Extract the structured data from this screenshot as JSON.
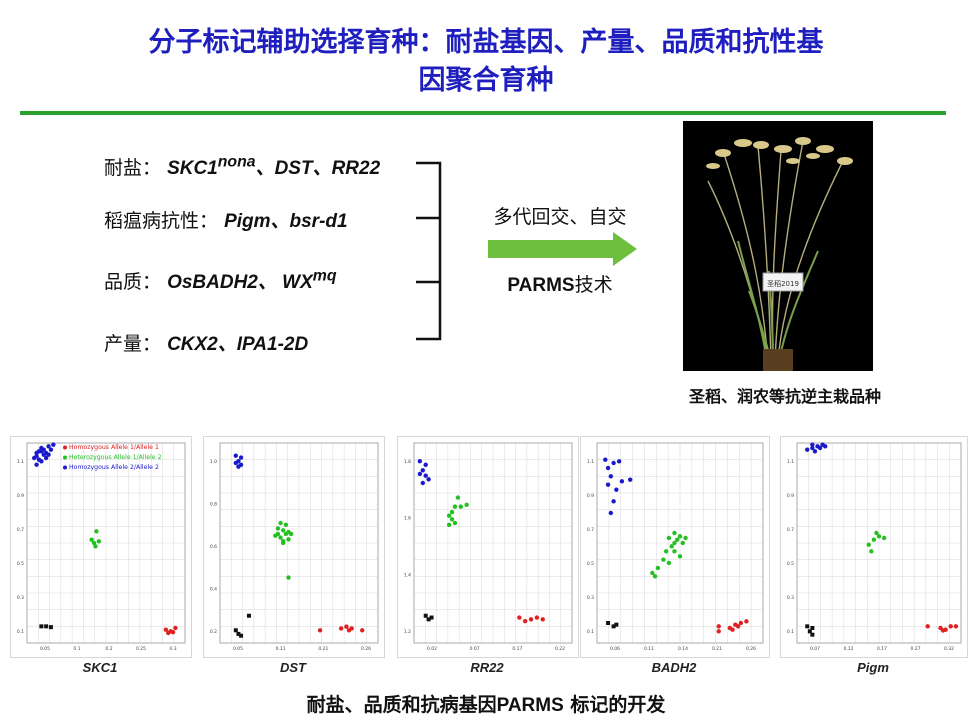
{
  "title_line1": "分子标记辅助选择育种：耐盐基因、产量、品质和抗性基",
  "title_line2": "因聚合育种",
  "traits": [
    {
      "label": "耐盐：",
      "genes_html": "SKC1<sup>nona</sup>、DST、RR22"
    },
    {
      "label": "稻瘟病抗性：",
      "genes_html": "Pigm、bsr-d1"
    },
    {
      "label": "品质：",
      "genes_html": "OsBADH2、 WX<sup>mq</sup>"
    },
    {
      "label": "产量：",
      "genes_html": "CKX2、IPA1-2D"
    }
  ],
  "process": {
    "line1": "多代回交、自交",
    "line2_en": "PARMS",
    "line2_zh": "技术"
  },
  "photo_tag": "圣稻2019",
  "photo_caption": "圣稻、润农等抗逆主栽品种",
  "legend": [
    {
      "label": "Homozygous Allele 1/Allele 1",
      "color": "#e02020"
    },
    {
      "label": "Heterozygous Allele 1/Allele 2",
      "color": "#22c022"
    },
    {
      "label": "Homozygous Allele 2/Allele 2",
      "color": "#1a1acc"
    }
  ],
  "colors": {
    "title": "#1f1fbf",
    "rule": "#2ca02c",
    "arrow": "#6fbf3f",
    "allele1": "#e02020",
    "het": "#22c022",
    "allele2": "#1a1acc",
    "ntc": "#111111"
  },
  "bottom_caption_zh1": "耐盐、品质和抗病基因",
  "bottom_caption_en": "PARMS",
  "bottom_caption_zh2": " 标记的开发",
  "chart_data": [
    {
      "type": "scatter",
      "title": "SKC1",
      "xlim": [
        0.0,
        0.33
      ],
      "ylim": [
        0.0,
        1.2
      ],
      "xticks": [
        "0.05",
        "0.1",
        "0.2",
        "0.25",
        "0.3"
      ],
      "yticks": [
        "1.1",
        "0.9",
        "0.7",
        "0.5",
        "0.3",
        "0.1"
      ],
      "series": [
        {
          "name": "Homozygous Allele 2/Allele 2",
          "points": [
            [
              0.02,
              1.12
            ],
            [
              0.03,
              1.15
            ],
            [
              0.025,
              1.1
            ],
            [
              0.04,
              1.14
            ],
            [
              0.03,
              1.17
            ],
            [
              0.05,
              1.16
            ],
            [
              0.02,
              1.07
            ],
            [
              0.035,
              1.13
            ],
            [
              0.045,
              1.18
            ],
            [
              0.015,
              1.11
            ],
            [
              0.03,
              1.09
            ],
            [
              0.055,
              1.19
            ],
            [
              0.025,
              1.15
            ],
            [
              0.04,
              1.11
            ],
            [
              0.02,
              1.14
            ],
            [
              0.035,
              1.16
            ],
            [
              0.045,
              1.13
            ]
          ]
        },
        {
          "name": "Heterozygous Allele 1/Allele 2",
          "points": [
            [
              0.145,
              0.67
            ],
            [
              0.14,
              0.6
            ],
            [
              0.15,
              0.61
            ],
            [
              0.143,
              0.58
            ],
            [
              0.135,
              0.62
            ]
          ]
        },
        {
          "name": "Homozygous Allele 1/Allele 1",
          "points": [
            [
              0.29,
              0.08
            ],
            [
              0.3,
              0.07
            ],
            [
              0.31,
              0.09
            ],
            [
              0.295,
              0.06
            ],
            [
              0.305,
              0.065
            ]
          ]
        },
        {
          "name": "NTC",
          "points": [
            [
              0.03,
              0.1
            ],
            [
              0.04,
              0.1
            ],
            [
              0.05,
              0.095
            ]
          ]
        }
      ]
    },
    {
      "type": "scatter",
      "title": "DST",
      "xlim": [
        0.0,
        0.3
      ],
      "ylim": [
        0.0,
        1.1
      ],
      "xticks": [
        "0.05",
        "0.11",
        "0.21",
        "0.26"
      ],
      "yticks": [
        "1.0",
        "0.8",
        "0.6",
        "0.4",
        "0.2"
      ],
      "series": [
        {
          "name": "Homozygous Allele 2/Allele 2",
          "points": [
            [
              0.03,
              1.03
            ],
            [
              0.035,
              1.0
            ],
            [
              0.04,
              0.98
            ],
            [
              0.03,
              0.99
            ],
            [
              0.04,
              1.02
            ],
            [
              0.035,
              0.97
            ]
          ]
        },
        {
          "name": "Heterozygous Allele 1/Allele 2",
          "points": [
            [
              0.11,
              0.6
            ],
            [
              0.12,
              0.62
            ],
            [
              0.115,
              0.58
            ],
            [
              0.125,
              0.6
            ],
            [
              0.13,
              0.57
            ],
            [
              0.12,
              0.56
            ],
            [
              0.11,
              0.63
            ],
            [
              0.13,
              0.61
            ],
            [
              0.105,
              0.59
            ],
            [
              0.115,
              0.66
            ],
            [
              0.12,
              0.55
            ],
            [
              0.135,
              0.6
            ],
            [
              0.125,
              0.65
            ],
            [
              0.13,
              0.36
            ]
          ]
        },
        {
          "name": "Homozygous Allele 1/Allele 1",
          "points": [
            [
              0.23,
              0.08
            ],
            [
              0.24,
              0.09
            ],
            [
              0.245,
              0.07
            ],
            [
              0.25,
              0.08
            ],
            [
              0.27,
              0.07
            ],
            [
              0.19,
              0.07
            ]
          ]
        },
        {
          "name": "NTC",
          "points": [
            [
              0.03,
              0.07
            ],
            [
              0.04,
              0.04
            ],
            [
              0.055,
              0.15
            ],
            [
              0.035,
              0.05
            ]
          ]
        }
      ]
    },
    {
      "type": "scatter",
      "title": "RR22",
      "xlim": [
        0.0,
        0.27
      ],
      "ylim": [
        1.0,
        2.1
      ],
      "xticks": [
        "0.02",
        "0.07",
        "0.17",
        "0.22"
      ],
      "yticks": [
        "1.8",
        "1.6",
        "1.4",
        "1.2"
      ],
      "series": [
        {
          "name": "Homozygous Allele 2/Allele 2",
          "points": [
            [
              0.01,
              2.0
            ],
            [
              0.015,
              1.95
            ],
            [
              0.02,
              1.92
            ],
            [
              0.025,
              1.9
            ],
            [
              0.02,
              1.98
            ],
            [
              0.01,
              1.93
            ],
            [
              0.015,
              1.88
            ]
          ]
        },
        {
          "name": "Heterozygous Allele 1/Allele 2",
          "points": [
            [
              0.06,
              1.7
            ],
            [
              0.065,
              1.68
            ],
            [
              0.07,
              1.75
            ],
            [
              0.075,
              1.8
            ],
            [
              0.06,
              1.65
            ],
            [
              0.07,
              1.66
            ],
            [
              0.065,
              1.72
            ],
            [
              0.08,
              1.75
            ],
            [
              0.09,
              1.76
            ]
          ]
        },
        {
          "name": "Homozygous Allele 1/Allele 1",
          "points": [
            [
              0.18,
              1.14
            ],
            [
              0.2,
              1.13
            ],
            [
              0.21,
              1.14
            ],
            [
              0.22,
              1.13
            ],
            [
              0.19,
              1.12
            ]
          ]
        },
        {
          "name": "NTC",
          "points": [
            [
              0.02,
              1.15
            ],
            [
              0.025,
              1.13
            ],
            [
              0.03,
              1.14
            ]
          ]
        }
      ]
    },
    {
      "type": "scatter",
      "title": "BADH2",
      "xlim": [
        0.0,
        0.3
      ],
      "ylim": [
        0.0,
        1.2
      ],
      "xticks": [
        "0.06",
        "0.11",
        "0.14",
        "0.21",
        "0.26"
      ],
      "yticks": [
        "1.1",
        "0.9",
        "0.7",
        "0.5",
        "0.3",
        "0.1"
      ],
      "series": [
        {
          "name": "Homozygous Allele 2/Allele 2",
          "points": [
            [
              0.015,
              1.1
            ],
            [
              0.02,
              1.05
            ],
            [
              0.03,
              1.08
            ],
            [
              0.025,
              1.0
            ],
            [
              0.035,
              0.92
            ],
            [
              0.04,
              1.09
            ],
            [
              0.02,
              0.95
            ],
            [
              0.045,
              0.97
            ],
            [
              0.03,
              0.85
            ],
            [
              0.025,
              0.78
            ],
            [
              0.06,
              0.98
            ]
          ]
        },
        {
          "name": "Heterozygous Allele 1/Allele 2",
          "points": [
            [
              0.1,
              0.42
            ],
            [
              0.11,
              0.45
            ],
            [
              0.12,
              0.5
            ],
            [
              0.13,
              0.48
            ],
            [
              0.125,
              0.55
            ],
            [
              0.14,
              0.6
            ],
            [
              0.135,
              0.58
            ],
            [
              0.145,
              0.62
            ],
            [
              0.15,
              0.64
            ],
            [
              0.14,
              0.55
            ],
            [
              0.155,
              0.6
            ],
            [
              0.16,
              0.63
            ],
            [
              0.15,
              0.52
            ],
            [
              0.105,
              0.4
            ],
            [
              0.14,
              0.66
            ],
            [
              0.13,
              0.63
            ]
          ]
        },
        {
          "name": "Homozygous Allele 1/Allele 1",
          "points": [
            [
              0.22,
              0.1
            ],
            [
              0.24,
              0.09
            ],
            [
              0.25,
              0.11
            ],
            [
              0.255,
              0.1
            ],
            [
              0.26,
              0.12
            ],
            [
              0.27,
              0.13
            ],
            [
              0.22,
              0.07
            ],
            [
              0.245,
              0.08
            ]
          ]
        },
        {
          "name": "NTC",
          "points": [
            [
              0.02,
              0.12
            ],
            [
              0.03,
              0.1
            ],
            [
              0.035,
              0.11
            ]
          ]
        }
      ]
    },
    {
      "type": "scatter",
      "title": "Pigm",
      "xlim": [
        0.0,
        0.32
      ],
      "ylim": [
        0.0,
        1.2
      ],
      "xticks": [
        "0.07",
        "0.12",
        "0.17",
        "0.27",
        "0.32"
      ],
      "yticks": [
        "1.1",
        "0.9",
        "0.7",
        "0.5",
        "0.3",
        "0.1"
      ],
      "series": [
        {
          "name": "Homozygous Allele 2/Allele 2",
          "points": [
            [
              0.02,
              1.16
            ],
            [
              0.03,
              1.17
            ],
            [
              0.04,
              1.18
            ],
            [
              0.05,
              1.19
            ],
            [
              0.035,
              1.15
            ],
            [
              0.045,
              1.17
            ],
            [
              0.055,
              1.18
            ],
            [
              0.03,
              1.19
            ]
          ]
        },
        {
          "name": "Heterozygous Allele 1/Allele 2",
          "points": [
            [
              0.14,
              0.59
            ],
            [
              0.15,
              0.62
            ],
            [
              0.16,
              0.64
            ],
            [
              0.155,
              0.66
            ],
            [
              0.17,
              0.63
            ],
            [
              0.145,
              0.55
            ]
          ]
        },
        {
          "name": "Homozygous Allele 1/Allele 1",
          "points": [
            [
              0.255,
              0.1
            ],
            [
              0.28,
              0.09
            ],
            [
              0.29,
              0.08
            ],
            [
              0.3,
              0.1
            ],
            [
              0.31,
              0.1
            ],
            [
              0.285,
              0.075
            ]
          ]
        },
        {
          "name": "NTC",
          "points": [
            [
              0.02,
              0.1
            ],
            [
              0.03,
              0.09
            ],
            [
              0.025,
              0.07
            ],
            [
              0.03,
              0.05
            ]
          ]
        }
      ]
    }
  ]
}
